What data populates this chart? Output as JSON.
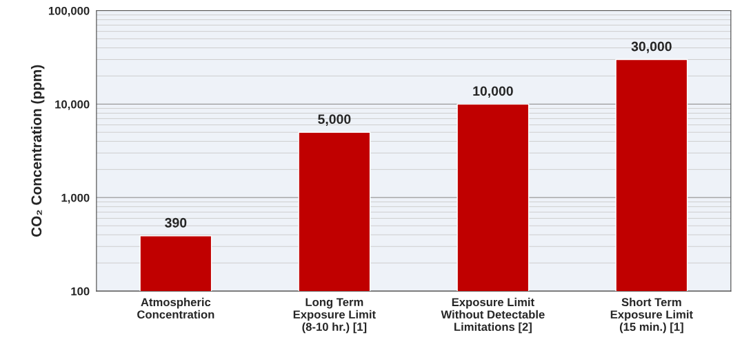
{
  "chart_data": {
    "type": "bar",
    "ylabel": "CO₂ Concentration (ppm)",
    "categories": [
      "Atmospheric\nConcentration",
      "Long Term\nExposure Limit\n(8-10 hr.) [1]",
      "Exposure Limit\nWithout Detectable\nLimitations [2]",
      "Short Term\nExposure Limit\n(15 min.) [1]"
    ],
    "values": [
      390,
      5000,
      10000,
      30000
    ],
    "value_labels": [
      "390",
      "5,000",
      "10,000",
      "30,000"
    ],
    "color": "#c00000",
    "log": true,
    "ylim": [
      100,
      100000
    ],
    "yticks": [
      {
        "value": 100,
        "label": "100"
      },
      {
        "value": 1000,
        "label": "1,000"
      },
      {
        "value": 10000,
        "label": "10,000"
      },
      {
        "value": 100000,
        "label": "100,000"
      }
    ],
    "grid": "y"
  }
}
